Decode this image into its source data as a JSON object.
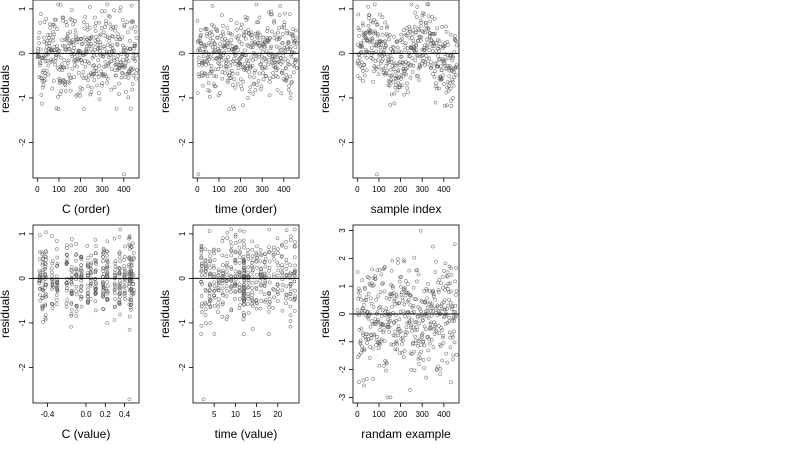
{
  "figure": {
    "layout": "2x3 grid of residual diagnostic scatter plots",
    "marker": "open circle",
    "marker_color": "#555555",
    "reference_line": "horizontal line at y = 0",
    "background": "#ffffff"
  },
  "chart_data": [
    {
      "type": "scatter",
      "xlabel": "C (order)",
      "ylabel": "residuals",
      "xlim": [
        -20,
        470
      ],
      "ylim": [
        -2.8,
        1.2
      ],
      "xticks": [
        0,
        100,
        200,
        300,
        400
      ],
      "yticks": [
        1,
        0,
        -1,
        -2
      ],
      "n_points": 460,
      "pattern": "residuals vs order sorted by C; mostly within -1.2..1.1, one outlier near x=400, y=-2.7",
      "outliers": [
        {
          "x": 400,
          "y": -2.72
        }
      ]
    },
    {
      "type": "scatter",
      "xlabel": "time (order)",
      "ylabel": "residuals",
      "xlim": [
        -20,
        470
      ],
      "ylim": [
        -2.8,
        1.2
      ],
      "xticks": [
        0,
        100,
        200,
        300,
        400
      ],
      "yticks": [
        1,
        0,
        -1,
        -2
      ],
      "n_points": 460,
      "pattern": "residuals vs order sorted by time; spread roughly -1..1.1, one outlier near x=5, y=-2.7",
      "outliers": [
        {
          "x": 5,
          "y": -2.72
        }
      ]
    },
    {
      "type": "scatter",
      "xlabel": "sample index",
      "ylabel": "residuals",
      "xlim": [
        -20,
        470
      ],
      "ylim": [
        -2.8,
        1.2
      ],
      "xticks": [
        0,
        100,
        200,
        300,
        400
      ],
      "yticks": [
        1,
        0,
        -1,
        -2
      ],
      "n_points": 460,
      "pattern": "residuals vs sample index with wavy structure; one outlier near x=90, y=-2.7",
      "outliers": [
        {
          "x": 90,
          "y": -2.72
        }
      ]
    },
    {
      "type": "scatter",
      "xlabel": "C (value)",
      "ylabel": "residuals",
      "xlim": [
        -0.55,
        0.55
      ],
      "ylim": [
        -2.8,
        1.2
      ],
      "xticks": [
        -0.4,
        0.0,
        0.2,
        0.4
      ],
      "xtick_labels": [
        "-0.4",
        "0.0",
        "0.2",
        "0.4"
      ],
      "yticks": [
        1,
        0,
        -1,
        -2
      ],
      "n_points": 460,
      "pattern": "residuals clustered in vertical stripes at discrete C values; one outlier near x=0.45, y=-2.7",
      "outliers": [
        {
          "x": 0.45,
          "y": -2.72
        }
      ]
    },
    {
      "type": "scatter",
      "xlabel": "time (value)",
      "ylabel": "residuals",
      "xlim": [
        0,
        25
      ],
      "ylim": [
        -2.8,
        1.2
      ],
      "xticks": [
        5,
        10,
        15,
        20
      ],
      "yticks": [
        1,
        0,
        -1,
        -2
      ],
      "n_points": 460,
      "pattern": "residuals at discrete time values with a dense stripe near x=12; one outlier near x=2.5, y=-2.7",
      "outliers": [
        {
          "x": 2.5,
          "y": -2.72
        }
      ]
    },
    {
      "type": "scatter",
      "xlabel": "randam example",
      "ylabel": "residuals",
      "xlim": [
        -20,
        470
      ],
      "ylim": [
        -3.2,
        3.2
      ],
      "xticks": [
        0,
        100,
        200,
        300,
        400
      ],
      "yticks": [
        3,
        2,
        1,
        0,
        -1,
        -2,
        -3
      ],
      "n_points": 460,
      "pattern": "random normal residuals spanning about -3..3 with no structure",
      "outliers": []
    }
  ]
}
